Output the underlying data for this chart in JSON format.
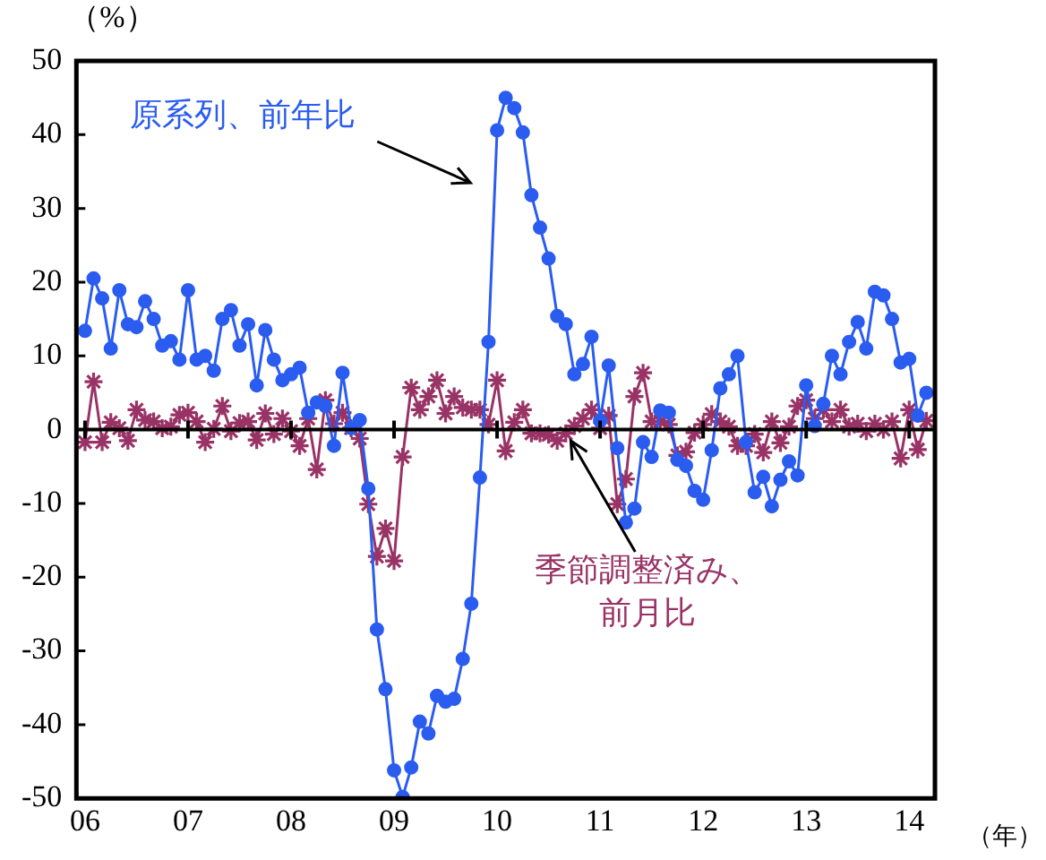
{
  "chart_data": {
    "type": "line",
    "ylabel": "（%）",
    "xlabel": "（年）",
    "x": [
      "2006-01",
      "2006-02",
      "2006-03",
      "2006-04",
      "2006-05",
      "2006-06",
      "2006-07",
      "2006-08",
      "2006-09",
      "2006-10",
      "2006-11",
      "2006-12",
      "2007-01",
      "2007-02",
      "2007-03",
      "2007-04",
      "2007-05",
      "2007-06",
      "2007-07",
      "2007-08",
      "2007-09",
      "2007-10",
      "2007-11",
      "2007-12",
      "2008-01",
      "2008-02",
      "2008-03",
      "2008-04",
      "2008-05",
      "2008-06",
      "2008-07",
      "2008-08",
      "2008-09",
      "2008-10",
      "2008-11",
      "2008-12",
      "2009-01",
      "2009-02",
      "2009-03",
      "2009-04",
      "2009-05",
      "2009-06",
      "2009-07",
      "2009-08",
      "2009-09",
      "2009-10",
      "2009-11",
      "2009-12",
      "2010-01",
      "2010-02",
      "2010-03",
      "2010-04",
      "2010-05",
      "2010-06",
      "2010-07",
      "2010-08",
      "2010-09",
      "2010-10",
      "2010-11",
      "2010-12",
      "2011-01",
      "2011-02",
      "2011-03",
      "2011-04",
      "2011-05",
      "2011-06",
      "2011-07",
      "2011-08",
      "2011-09",
      "2011-10",
      "2011-11",
      "2011-12",
      "2012-01",
      "2012-02",
      "2012-03",
      "2012-04",
      "2012-05",
      "2012-06",
      "2012-07",
      "2012-08",
      "2012-09",
      "2012-10",
      "2012-11",
      "2012-12",
      "2013-01",
      "2013-02",
      "2013-03",
      "2013-04",
      "2013-05",
      "2013-06",
      "2013-07",
      "2013-08",
      "2013-09",
      "2013-10",
      "2013-11",
      "2013-12",
      "2014-01",
      "2014-02",
      "2014-03"
    ],
    "series": [
      {
        "name": "原系列、前年比",
        "color": "#2a5cf0",
        "marker": "circle",
        "values": [
          13.4,
          20.5,
          17.8,
          11,
          18.9,
          14.3,
          13.9,
          17.4,
          15,
          11.4,
          12,
          9.5,
          18.9,
          9.5,
          10,
          8,
          15,
          16.2,
          11.4,
          14.3,
          6,
          13.5,
          9.5,
          6.7,
          7.5,
          8.4,
          2.3,
          3.7,
          3.2,
          -2.2,
          7.7,
          0.2,
          1.3,
          -8,
          -27.1,
          -35.2,
          -46.2,
          -49.8,
          -45.8,
          -39.6,
          -41.2,
          -36.1,
          -36.9,
          -36.5,
          -31.1,
          -23.6,
          -6.5,
          11.9,
          40.6,
          45,
          43.6,
          40.3,
          31.8,
          27.4,
          23.2,
          15.4,
          14.3,
          7.5,
          8.9,
          12.6,
          1.2,
          8.7,
          -2.5,
          -12.6,
          -10.7,
          -1.7,
          -3.7,
          2.6,
          2.3,
          -4.1,
          -4.9,
          -8.3,
          -9.5,
          -2.8,
          5.6,
          7.5,
          10,
          -1.7,
          -8.5,
          -6.4,
          -10.4,
          -6.8,
          -4.3,
          -6.2,
          6,
          0.5,
          3.5,
          10,
          7.5,
          11.9,
          14.6,
          11,
          18.7,
          18.2,
          15,
          9.1,
          9.6,
          1.9,
          5
        ]
      },
      {
        "name": "季節調整済み、前月比",
        "color": "#993366",
        "marker": "cross",
        "values": [
          -1.7,
          6.5,
          -1.7,
          1,
          0.2,
          -1.5,
          2.7,
          1.3,
          1.1,
          0.2,
          0.4,
          2,
          2.3,
          1.1,
          -1.7,
          0.1,
          3.2,
          -0.2,
          0.9,
          1.1,
          -1.4,
          2.2,
          -0.6,
          1.5,
          -0.2,
          -2.2,
          1.5,
          -5.4,
          4,
          0.8,
          2.3,
          0.2,
          -1.2,
          -10.1,
          -17.2,
          -13.4,
          -17.8,
          -3.7,
          5.7,
          2.7,
          4.5,
          6.7,
          2.2,
          4.5,
          3,
          2.7,
          2.7,
          0.7,
          6.7,
          -2.9,
          1,
          2.7,
          -0.5,
          -0.5,
          -0.7,
          -1.5,
          -0.5,
          0.5,
          1.5,
          2.7,
          0.2,
          1.9,
          -10.1,
          -6.7,
          4.5,
          7.7,
          1.1,
          1.1,
          0.7,
          -3.5,
          -3,
          -0.4,
          0.7,
          2.1,
          1.1,
          0.4,
          -2.2,
          -2.2,
          -0.6,
          -3.1,
          1.1,
          -1.8,
          0.4,
          3.2,
          4,
          1.5,
          2.7,
          1.1,
          2.7,
          0.4,
          0.8,
          -0.2,
          0.8,
          0,
          1.1,
          -3.9,
          2.7,
          -2.7,
          1.2
        ]
      }
    ],
    "xlim": [
      "2005-12",
      "2014-04"
    ],
    "xticks": [
      {
        "value": "2006-01",
        "label": "06"
      },
      {
        "value": "2007-01",
        "label": "07"
      },
      {
        "value": "2008-01",
        "label": "08"
      },
      {
        "value": "2009-01",
        "label": "09"
      },
      {
        "value": "2010-01",
        "label": "10"
      },
      {
        "value": "2011-01",
        "label": "11"
      },
      {
        "value": "2012-01",
        "label": "12"
      },
      {
        "value": "2013-01",
        "label": "13"
      },
      {
        "value": "2014-01",
        "label": "14"
      }
    ],
    "ylim": [
      -50,
      50
    ],
    "yticks": [
      -50,
      -40,
      -30,
      -20,
      -10,
      0,
      10,
      20,
      30,
      40,
      50
    ],
    "ref_lines": [
      {
        "axis": "y",
        "value": 0,
        "color": "#000000"
      }
    ],
    "grid": false,
    "legend": false,
    "line_style": "solid"
  }
}
